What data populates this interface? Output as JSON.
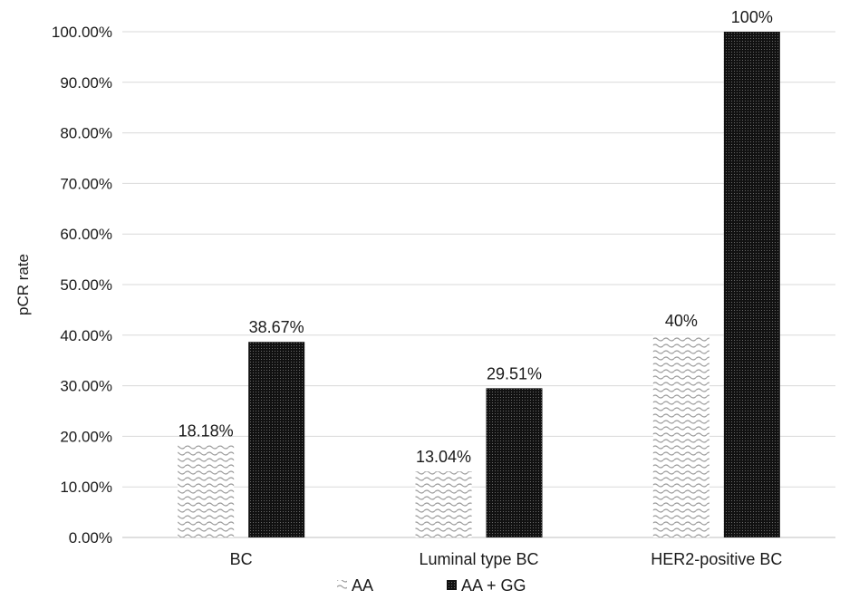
{
  "chart_data": {
    "type": "bar",
    "title": "",
    "xlabel": "",
    "ylabel": "pCR rate",
    "ylim": [
      0,
      1
    ],
    "y_ticks": [
      "0.00%",
      "10.00%",
      "20.00%",
      "30.00%",
      "40.00%",
      "50.00%",
      "60.00%",
      "70.00%",
      "80.00%",
      "90.00%",
      "100.00%"
    ],
    "grid": true,
    "legend_position": "bottom",
    "categories": [
      "BC",
      "Luminal type BC",
      "HER2-positive BC"
    ],
    "series": [
      {
        "name": "AA",
        "values": [
          0.1818,
          0.1304,
          0.4
        ],
        "labels": [
          "18.18%",
          "13.04%",
          "40%"
        ],
        "pattern": "wave",
        "color": "#bdbdbd"
      },
      {
        "name": "AA + GG",
        "values": [
          0.3867,
          0.2951,
          1.0
        ],
        "labels": [
          "38.67%",
          "29.51%",
          "100%"
        ],
        "pattern": "dots",
        "color": "#1a1a1a"
      }
    ]
  }
}
